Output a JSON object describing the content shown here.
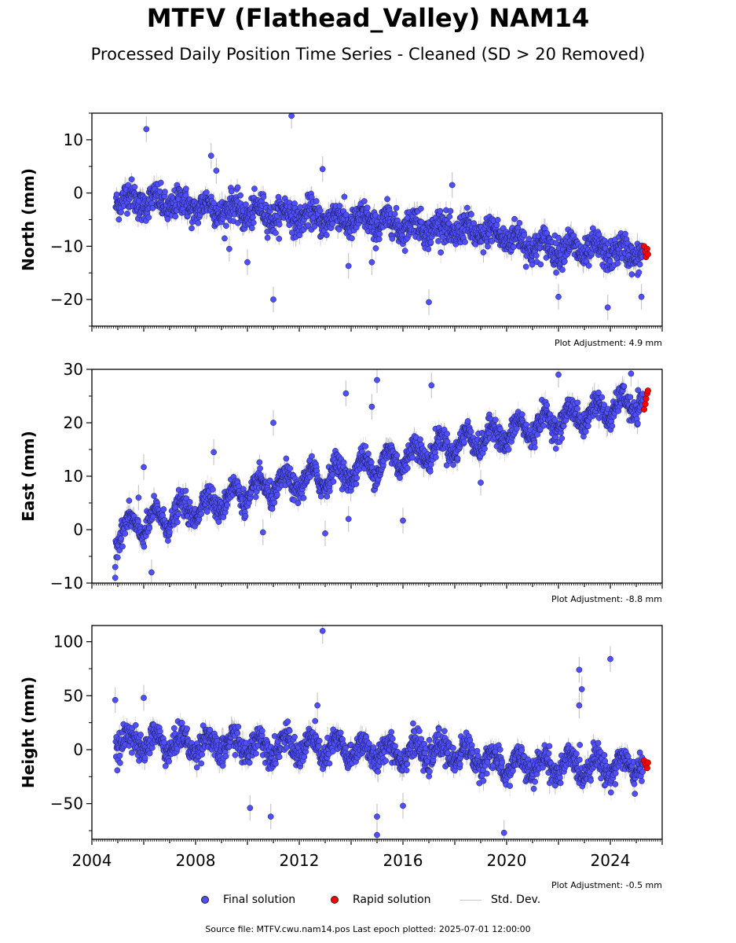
{
  "title": "MTFV (Flathead_Valley) NAM14",
  "subtitle": "Processed Daily Position Time Series - Cleaned (SD > 20 Removed)",
  "legend": {
    "final": "Final solution",
    "rapid": "Rapid solution",
    "std": "Std. Dev."
  },
  "source_line": "Source file: MTFV.cwu.nam14.pos  Last epoch plotted: 2025-07-01 12:00:00",
  "colors": {
    "final": "#4f4fff",
    "rapid": "#ff0000",
    "std": "#c8c8c8"
  },
  "chart_data": [
    {
      "type": "scatter",
      "panel": "north",
      "ylabel": "North (mm)",
      "ylim": [
        -25,
        15
      ],
      "yticks": [
        -20,
        -10,
        0,
        10
      ],
      "xlim": [
        2004.0,
        2026.0
      ],
      "adjustment_note": "Plot Adjustment: 4.9 mm",
      "trend": [
        [
          2004.9,
          -1
        ],
        [
          2010,
          -3.5
        ],
        [
          2015,
          -5.5
        ],
        [
          2020,
          -8
        ],
        [
          2021,
          -10
        ],
        [
          2025.4,
          -11.5
        ]
      ],
      "seasonal_amplitude": 1.2,
      "noise": 1.4,
      "rapid_points": [
        [
          2025.3,
          -10
        ],
        [
          2025.35,
          -11
        ],
        [
          2025.38,
          -12
        ],
        [
          2025.42,
          -10.5
        ],
        [
          2025.45,
          -11.5
        ]
      ],
      "outliers": [
        [
          2006.1,
          12
        ],
        [
          2011.7,
          14.5
        ],
        [
          2011.0,
          -20
        ],
        [
          2012.9,
          4.5
        ],
        [
          2008.6,
          7
        ],
        [
          2008.8,
          4.2
        ],
        [
          2017.0,
          -20.5
        ],
        [
          2017.9,
          1.5
        ],
        [
          2023.9,
          -21.5
        ],
        [
          2022.0,
          -19.5
        ],
        [
          2025.2,
          -19.5
        ],
        [
          2010.0,
          -13
        ],
        [
          2009.3,
          -10.5
        ],
        [
          2013.9,
          -13.7
        ],
        [
          2014.8,
          -13
        ]
      ]
    },
    {
      "type": "scatter",
      "panel": "east",
      "ylabel": "East (mm)",
      "ylim": [
        -10,
        30
      ],
      "yticks": [
        -10,
        0,
        10,
        20,
        30
      ],
      "xlim": [
        2004.0,
        2026.0
      ],
      "adjustment_note": "Plot Adjustment: -8.8 mm",
      "trend": [
        [
          2004.9,
          -0.5
        ],
        [
          2006,
          1
        ],
        [
          2010,
          7
        ],
        [
          2014,
          11
        ],
        [
          2018,
          16
        ],
        [
          2020,
          18
        ],
        [
          2022,
          20.5
        ],
        [
          2025.4,
          24
        ]
      ],
      "seasonal_amplitude": 2.0,
      "noise": 1.1,
      "rapid_points": [
        [
          2025.3,
          22.5
        ],
        [
          2025.35,
          23.5
        ],
        [
          2025.38,
          24.5
        ],
        [
          2025.42,
          25.5
        ],
        [
          2025.45,
          26
        ]
      ],
      "outliers": [
        [
          2004.9,
          -9
        ],
        [
          2004.9,
          -7
        ],
        [
          2006.0,
          11.7
        ],
        [
          2005.8,
          6
        ],
        [
          2006.3,
          -8
        ],
        [
          2008.7,
          14.5
        ],
        [
          2010.6,
          -0.5
        ],
        [
          2011.0,
          20
        ],
        [
          2013.0,
          -0.7
        ],
        [
          2013.8,
          25.5
        ],
        [
          2013.9,
          2
        ],
        [
          2014.8,
          23
        ],
        [
          2015.0,
          28
        ],
        [
          2016.0,
          1.7
        ],
        [
          2017.1,
          27
        ],
        [
          2019.0,
          8.8
        ],
        [
          2022.0,
          29
        ],
        [
          2024.8,
          29.2
        ]
      ]
    },
    {
      "type": "scatter",
      "panel": "height",
      "ylabel": "Height (mm)",
      "ylim": [
        -83,
        115
      ],
      "yticks": [
        -50,
        0,
        50,
        100
      ],
      "xlim": [
        2004.0,
        2026.0
      ],
      "adjustment_note": "Plot Adjustment: -0.5 mm",
      "trend": [
        [
          2004.9,
          8
        ],
        [
          2008,
          5
        ],
        [
          2012,
          3
        ],
        [
          2015,
          -2
        ],
        [
          2018,
          -2
        ],
        [
          2020,
          -15
        ],
        [
          2021,
          -15
        ],
        [
          2025.4,
          -15
        ]
      ],
      "seasonal_amplitude": 9,
      "noise": 6,
      "rapid_points": [
        [
          2025.3,
          -10
        ],
        [
          2025.35,
          -13
        ],
        [
          2025.38,
          -15
        ],
        [
          2025.42,
          -17
        ],
        [
          2025.45,
          -12
        ]
      ],
      "outliers": [
        [
          2004.9,
          46
        ],
        [
          2006.0,
          48
        ],
        [
          2010.1,
          -54
        ],
        [
          2010.9,
          -62
        ],
        [
          2012.9,
          110
        ],
        [
          2012.7,
          41
        ],
        [
          2015.0,
          -62
        ],
        [
          2015.0,
          -79
        ],
        [
          2016.0,
          -52
        ],
        [
          2019.9,
          -77
        ],
        [
          2022.8,
          74
        ],
        [
          2022.8,
          41
        ],
        [
          2022.9,
          56
        ],
        [
          2024.0,
          84
        ]
      ]
    }
  ],
  "x_tick_labels": [
    "2004",
    "2008",
    "2012",
    "2016",
    "2020",
    "2024"
  ]
}
